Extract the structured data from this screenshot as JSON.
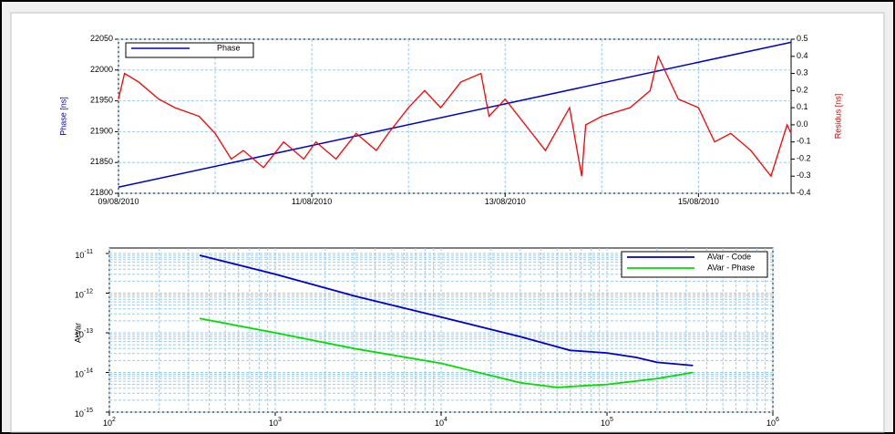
{
  "chart_data": [
    {
      "type": "line",
      "y_label": "Phase [ns]",
      "y2_label": "Residus [ns]",
      "xlim": [
        "2010-08-09T00:00",
        "2010-08-15T23:00"
      ],
      "xticks": [
        {
          "value": "2010-08-09",
          "label": "09/08/2010"
        },
        {
          "value": "2010-08-11",
          "label": "11/08/2010"
        },
        {
          "value": "2010-08-13",
          "label": "13/08/2010"
        },
        {
          "value": "2010-08-15",
          "label": "15/08/2010"
        }
      ],
      "xminor_ticks": [
        "2010-08-10",
        "2010-08-12",
        "2010-08-14"
      ],
      "ylim": [
        21800,
        22050
      ],
      "yticks": [
        21800,
        21850,
        21900,
        21950,
        22000,
        22050
      ],
      "y2lim": [
        -0.4,
        0.5
      ],
      "y2ticks": [
        -0.4,
        -0.3,
        -0.2,
        -0.1,
        {
          "value": 0,
          "label": "0.0"
        },
        0.1,
        0.2,
        0.3,
        0.4,
        0.5
      ],
      "grid": true,
      "legend": "upper left",
      "series": [
        {
          "name": "Phase",
          "color": "#0000cc",
          "x": [
            "2010-08-09T00:00",
            "2010-08-15T23:00"
          ],
          "values": [
            21810,
            22045
          ]
        },
        {
          "color": "#ff0000",
          "axis": "y2",
          "x": [
            "2010-08-09T00:00",
            "2010-08-09T01:30",
            "2010-08-09T05:00",
            "2010-08-09T10:00",
            "2010-08-09T14:00",
            "2010-08-09T20:00",
            "2010-08-10T00:00",
            "2010-08-10T04:00",
            "2010-08-10T07:00",
            "2010-08-10T12:00",
            "2010-08-10T17:00",
            "2010-08-10T22:00",
            "2010-08-11T01:00",
            "2010-08-11T06:00",
            "2010-08-11T11:00",
            "2010-08-11T16:00",
            "2010-08-11T19:00",
            "2010-08-12T00:00",
            "2010-08-12T04:00",
            "2010-08-12T08:00",
            "2010-08-12T13:00",
            "2010-08-12T18:00",
            "2010-08-12T20:00",
            "2010-08-13T00:00",
            "2010-08-13T05:00",
            "2010-08-13T10:00",
            "2010-08-13T16:00",
            "2010-08-13T19:00",
            "2010-08-13T20:00",
            "2010-08-14T00:00",
            "2010-08-14T07:00",
            "2010-08-14T12:00",
            "2010-08-14T14:00",
            "2010-08-14T19:00",
            "2010-08-15T00:00",
            "2010-08-15T04:00",
            "2010-08-15T08:00",
            "2010-08-15T13:00",
            "2010-08-15T18:00",
            "2010-08-15T22:00",
            "2010-08-15T23:00"
          ],
          "values": [
            0.15,
            0.3,
            0.25,
            0.15,
            0.1,
            0.05,
            -0.05,
            -0.2,
            -0.15,
            -0.25,
            -0.1,
            -0.2,
            -0.1,
            -0.2,
            -0.05,
            -0.15,
            -0.05,
            0.1,
            0.2,
            0.1,
            0.25,
            0.3,
            0.05,
            0.15,
            0.0,
            -0.15,
            0.1,
            -0.3,
            0.0,
            0.05,
            0.1,
            0.2,
            0.4,
            0.15,
            0.1,
            -0.1,
            -0.05,
            -0.15,
            -0.3,
            0.0,
            -0.05
          ]
        }
      ]
    },
    {
      "type": "line",
      "log_x": true,
      "log_y": true,
      "y_label": "A-Var",
      "xlim": [
        100,
        1000000
      ],
      "xticks": [
        {
          "value": 100,
          "label": "10",
          "exponent": "2"
        },
        {
          "value": 1000,
          "label": "10",
          "exponent": "3"
        },
        {
          "value": 10000,
          "label": "10",
          "exponent": "4"
        },
        {
          "value": 100000,
          "label": "10",
          "exponent": "5"
        },
        {
          "value": 1000000,
          "label": "10",
          "exponent": "6"
        }
      ],
      "ylim": [
        1e-15,
        1e-11
      ],
      "yticks": [
        {
          "value": 1e-15,
          "label": "10",
          "exponent": "-15"
        },
        {
          "value": 1e-14,
          "label": "10",
          "exponent": "-14"
        },
        {
          "value": 1e-13,
          "label": "10",
          "exponent": "-13"
        },
        {
          "value": 1e-12,
          "label": "10",
          "exponent": "-12"
        },
        {
          "value": 1e-11,
          "label": "10",
          "exponent": "-11"
        }
      ],
      "grid": true,
      "legend": "upper right",
      "series": [
        {
          "name": "AVar - Code",
          "color": "#0000cc",
          "x": [
            350,
            1000,
            3000,
            10000,
            30000,
            60000,
            100000,
            150000,
            200000,
            330000
          ],
          "values": [
            9e-12,
            3e-12,
            8.5e-13,
            2.5e-13,
            8e-14,
            3.6e-14,
            3.1e-14,
            2.4e-14,
            1.8e-14,
            1.5e-14
          ]
        },
        {
          "name": "AVar - Phase",
          "color": "#00dd00",
          "x": [
            350,
            1000,
            3000,
            10000,
            30000,
            50000,
            100000,
            200000,
            330000
          ],
          "values": [
            2.3e-13,
            1e-13,
            4e-14,
            1.7e-14,
            5.5e-15,
            4.2e-15,
            5e-15,
            7e-15,
            1e-14
          ]
        }
      ]
    }
  ]
}
